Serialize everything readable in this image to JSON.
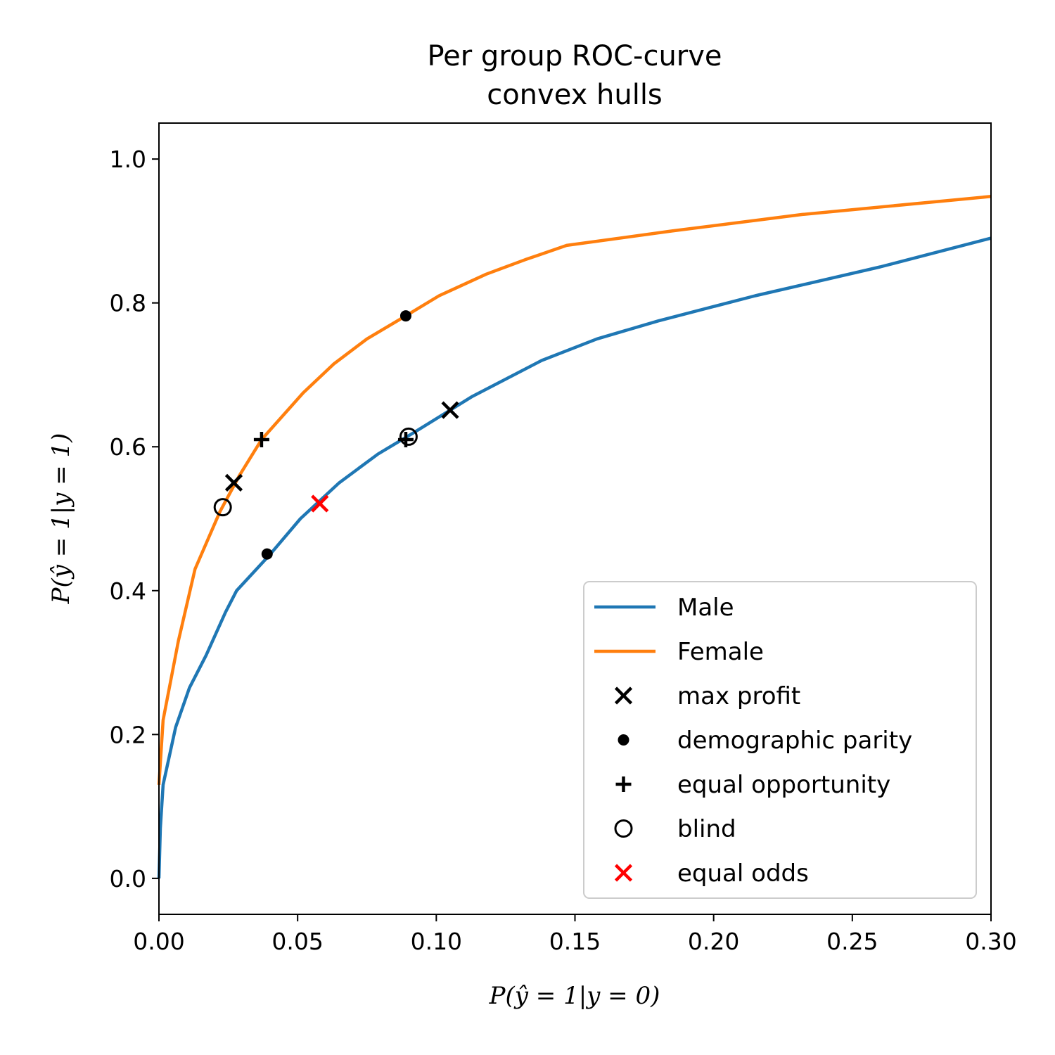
{
  "chart_data": {
    "type": "line",
    "title_lines": [
      "Per group ROC-curve",
      "convex hulls"
    ],
    "xlabel": "P(ŷ = 1|y = 0)",
    "ylabel": "P(ŷ = 1|y = 1)",
    "xlim": [
      0.0,
      0.3
    ],
    "ylim": [
      -0.05,
      1.05
    ],
    "xticks": [
      0.0,
      0.05,
      0.1,
      0.15,
      0.2,
      0.25,
      0.3
    ],
    "xtick_labels": [
      "0.00",
      "0.05",
      "0.10",
      "0.15",
      "0.20",
      "0.25",
      "0.30"
    ],
    "yticks": [
      0.0,
      0.2,
      0.4,
      0.6,
      0.8,
      1.0
    ],
    "ytick_labels": [
      "0.0",
      "0.2",
      "0.4",
      "0.6",
      "0.8",
      "1.0"
    ],
    "grid": false,
    "legend_position": "lower-right",
    "series": [
      {
        "name": "Male",
        "color": "#1f77b4",
        "x": [
          0.0,
          0.0005,
          0.0015,
          0.006,
          0.011,
          0.017,
          0.024,
          0.028,
          0.04,
          0.051,
          0.065,
          0.079,
          0.092,
          0.113,
          0.138,
          0.158,
          0.18,
          0.215,
          0.26,
          0.3
        ],
        "y": [
          0.0,
          0.07,
          0.13,
          0.21,
          0.265,
          0.31,
          0.37,
          0.4,
          0.45,
          0.5,
          0.55,
          0.59,
          0.62,
          0.67,
          0.72,
          0.75,
          0.775,
          0.81,
          0.85,
          0.89
        ]
      },
      {
        "name": "Female",
        "color": "#ff7f0e",
        "x": [
          0.0,
          0.0015,
          0.007,
          0.013,
          0.022,
          0.029,
          0.037,
          0.052,
          0.063,
          0.075,
          0.089,
          0.101,
          0.118,
          0.132,
          0.147,
          0.185,
          0.232,
          0.3
        ],
        "y": [
          0.13,
          0.22,
          0.33,
          0.43,
          0.51,
          0.56,
          0.61,
          0.675,
          0.715,
          0.75,
          0.782,
          0.81,
          0.84,
          0.86,
          0.88,
          0.9,
          0.923,
          0.948
        ]
      }
    ],
    "markers": [
      {
        "name": "max profit",
        "symbol": "x",
        "color": "#000000",
        "points": [
          [
            0.027,
            0.55
          ],
          [
            0.105,
            0.651
          ]
        ]
      },
      {
        "name": "demographic parity",
        "symbol": "dot",
        "color": "#000000",
        "points": [
          [
            0.089,
            0.782
          ],
          [
            0.039,
            0.451
          ]
        ]
      },
      {
        "name": "equal opportunity",
        "symbol": "plus",
        "color": "#000000",
        "points": [
          [
            0.037,
            0.61
          ],
          [
            0.089,
            0.61
          ]
        ]
      },
      {
        "name": "blind",
        "symbol": "circle",
        "color": "#000000",
        "points": [
          [
            0.023,
            0.516
          ],
          [
            0.09,
            0.614
          ]
        ]
      },
      {
        "name": "equal odds",
        "symbol": "x",
        "color": "#ff0000",
        "points": [
          [
            0.058,
            0.521
          ]
        ]
      }
    ]
  }
}
